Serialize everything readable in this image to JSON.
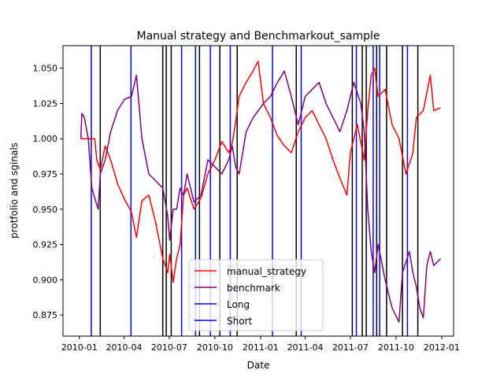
{
  "chart_data": {
    "type": "line",
    "title": "Manual strategy and Benchmarkout_sample",
    "xlabel": "Date",
    "ylabel": "protfolio and sginals",
    "xlim": [
      "2009-11-29",
      "2012-01-25"
    ],
    "ylim": [
      0.86,
      1.066
    ],
    "x_ticks": [
      "2010-01",
      "2010-04",
      "2010-07",
      "2010-10",
      "2011-01",
      "2011-04",
      "2011-07",
      "2011-10",
      "2012-01"
    ],
    "y_ticks": [
      0.875,
      0.9,
      0.925,
      0.95,
      0.975,
      1.0,
      1.025,
      1.05
    ],
    "y_tick_labels": [
      "0.875",
      "0.900",
      "0.925",
      "0.950",
      "0.975",
      "1.000",
      "1.025",
      "1.050"
    ],
    "grid": false,
    "legend": {
      "position": "lower-center",
      "entries": [
        "manual_strategy",
        "benchmark",
        "Long",
        "Short"
      ]
    },
    "series": [
      {
        "name": "manual_strategy",
        "color": "#ff0000",
        "points": [
          [
            "2010-01-04",
            1.0
          ],
          [
            "2010-01-19",
            1.0
          ],
          [
            "2010-02-01",
            1.0
          ],
          [
            "2010-02-05",
            0.985
          ],
          [
            "2010-02-12",
            0.978
          ],
          [
            "2010-02-22",
            0.995
          ],
          [
            "2010-03-05",
            0.985
          ],
          [
            "2010-03-19",
            0.968
          ],
          [
            "2010-04-02",
            0.957
          ],
          [
            "2010-04-16",
            0.948
          ],
          [
            "2010-04-26",
            0.93
          ],
          [
            "2010-05-07",
            0.956
          ],
          [
            "2010-05-21",
            0.96
          ],
          [
            "2010-06-04",
            0.94
          ],
          [
            "2010-06-18",
            0.915
          ],
          [
            "2010-06-28",
            0.905
          ],
          [
            "2010-07-02",
            0.918
          ],
          [
            "2010-07-09",
            0.898
          ],
          [
            "2010-07-16",
            0.915
          ],
          [
            "2010-07-23",
            0.925
          ],
          [
            "2010-07-30",
            0.96
          ],
          [
            "2010-08-06",
            0.965
          ],
          [
            "2010-08-20",
            0.95
          ],
          [
            "2010-09-03",
            0.958
          ],
          [
            "2010-09-17",
            0.975
          ],
          [
            "2010-10-01",
            0.985
          ],
          [
            "2010-10-15",
            0.998
          ],
          [
            "2010-10-29",
            0.99
          ],
          [
            "2010-11-05",
            0.997
          ],
          [
            "2010-11-12",
            1.012
          ],
          [
            "2010-11-19",
            1.03
          ],
          [
            "2010-12-03",
            1.04
          ],
          [
            "2010-12-17",
            1.048
          ],
          [
            "2010-12-27",
            1.055
          ],
          [
            "2011-01-07",
            1.025
          ],
          [
            "2011-01-21",
            1.015
          ],
          [
            "2011-02-04",
            1.002
          ],
          [
            "2011-02-18",
            0.995
          ],
          [
            "2011-03-04",
            0.99
          ],
          [
            "2011-03-18",
            1.005
          ],
          [
            "2011-04-01",
            1.015
          ],
          [
            "2011-04-15",
            1.02
          ],
          [
            "2011-04-29",
            1.01
          ],
          [
            "2011-05-13",
            1.0
          ],
          [
            "2011-05-27",
            0.985
          ],
          [
            "2011-06-10",
            0.972
          ],
          [
            "2011-06-24",
            0.96
          ],
          [
            "2011-07-01",
            0.99
          ],
          [
            "2011-07-15",
            1.01
          ],
          [
            "2011-07-29",
            0.985
          ],
          [
            "2011-08-05",
            1.02
          ],
          [
            "2011-08-12",
            1.045
          ],
          [
            "2011-08-19",
            1.05
          ],
          [
            "2011-08-26",
            1.03
          ],
          [
            "2011-09-09",
            1.035
          ],
          [
            "2011-09-23",
            1.01
          ],
          [
            "2011-10-07",
            1.0
          ],
          [
            "2011-10-21",
            0.975
          ],
          [
            "2011-11-04",
            0.99
          ],
          [
            "2011-11-11",
            1.015
          ],
          [
            "2011-11-25",
            1.02
          ],
          [
            "2011-12-09",
            1.045
          ],
          [
            "2011-12-16",
            1.02
          ],
          [
            "2011-12-30",
            1.022
          ]
        ]
      },
      {
        "name": "benchmark",
        "color": "#800080",
        "points": [
          [
            "2010-01-04",
            1.0
          ],
          [
            "2010-01-06",
            1.018
          ],
          [
            "2010-01-11",
            1.015
          ],
          [
            "2010-01-19",
            1.0
          ],
          [
            "2010-01-26",
            0.965
          ],
          [
            "2010-02-01",
            0.958
          ],
          [
            "2010-02-08",
            0.95
          ],
          [
            "2010-02-12",
            0.975
          ],
          [
            "2010-02-22",
            0.985
          ],
          [
            "2010-03-05",
            1.005
          ],
          [
            "2010-03-19",
            1.02
          ],
          [
            "2010-04-02",
            1.028
          ],
          [
            "2010-04-16",
            1.03
          ],
          [
            "2010-04-26",
            1.045
          ],
          [
            "2010-05-07",
            1.0
          ],
          [
            "2010-05-21",
            0.975
          ],
          [
            "2010-06-04",
            0.97
          ],
          [
            "2010-06-18",
            0.965
          ],
          [
            "2010-06-28",
            0.945
          ],
          [
            "2010-07-02",
            0.928
          ],
          [
            "2010-07-09",
            0.95
          ],
          [
            "2010-07-16",
            0.95
          ],
          [
            "2010-07-23",
            0.965
          ],
          [
            "2010-07-30",
            0.96
          ],
          [
            "2010-08-06",
            0.975
          ],
          [
            "2010-08-20",
            0.955
          ],
          [
            "2010-09-03",
            0.96
          ],
          [
            "2010-09-17",
            0.985
          ],
          [
            "2010-10-01",
            0.98
          ],
          [
            "2010-10-15",
            0.975
          ],
          [
            "2010-10-29",
            0.985
          ],
          [
            "2010-11-05",
            0.995
          ],
          [
            "2010-11-12",
            0.98
          ],
          [
            "2010-11-19",
            0.975
          ],
          [
            "2010-12-03",
            1.005
          ],
          [
            "2010-12-17",
            1.015
          ],
          [
            "2011-01-07",
            1.025
          ],
          [
            "2011-01-21",
            1.03
          ],
          [
            "2011-02-04",
            1.04
          ],
          [
            "2011-02-18",
            1.048
          ],
          [
            "2011-03-04",
            1.03
          ],
          [
            "2011-03-18",
            1.01
          ],
          [
            "2011-04-01",
            1.03
          ],
          [
            "2011-04-15",
            1.035
          ],
          [
            "2011-04-29",
            1.04
          ],
          [
            "2011-05-13",
            1.025
          ],
          [
            "2011-05-27",
            1.015
          ],
          [
            "2011-06-10",
            1.005
          ],
          [
            "2011-06-24",
            1.02
          ],
          [
            "2011-07-01",
            1.03
          ],
          [
            "2011-07-08",
            1.04
          ],
          [
            "2011-07-22",
            1.025
          ],
          [
            "2011-07-29",
            1.005
          ],
          [
            "2011-08-05",
            0.95
          ],
          [
            "2011-08-12",
            0.92
          ],
          [
            "2011-08-19",
            0.905
          ],
          [
            "2011-08-26",
            0.925
          ],
          [
            "2011-09-09",
            0.9
          ],
          [
            "2011-09-23",
            0.88
          ],
          [
            "2011-10-07",
            0.87
          ],
          [
            "2011-10-14",
            0.905
          ],
          [
            "2011-10-28",
            0.92
          ],
          [
            "2011-11-04",
            0.905
          ],
          [
            "2011-11-11",
            0.895
          ],
          [
            "2011-11-18",
            0.88
          ],
          [
            "2011-11-25",
            0.873
          ],
          [
            "2011-12-02",
            0.91
          ],
          [
            "2011-12-09",
            0.92
          ],
          [
            "2011-12-16",
            0.91
          ],
          [
            "2011-12-30",
            0.915
          ]
        ]
      }
    ],
    "signals": {
      "long": {
        "name": "Long",
        "color": "#0000ff",
        "dates": [
          "2010-01-25",
          "2010-04-15",
          "2010-07-26",
          "2010-08-23",
          "2010-09-22",
          "2010-11-01",
          "2011-01-25",
          "2011-03-24",
          "2011-07-13",
          "2011-08-16",
          "2011-08-29",
          "2011-10-24"
        ]
      },
      "short": {
        "name": "Short",
        "color": "#0000ff"
      },
      "exit": {
        "color": "#000000",
        "dates": [
          "2010-02-12",
          "2010-06-18",
          "2010-06-25",
          "2010-07-05",
          "2010-08-31",
          "2010-10-11",
          "2010-11-15",
          "2011-03-14",
          "2011-07-05",
          "2011-07-25",
          "2011-08-02",
          "2011-08-23",
          "2011-09-12",
          "2011-10-14",
          "2011-11-14"
        ]
      }
    }
  }
}
